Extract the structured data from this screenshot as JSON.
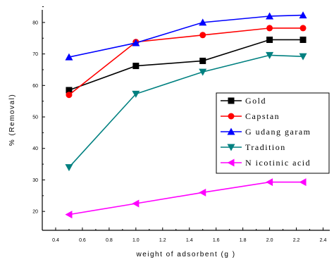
{
  "chart_data": {
    "type": "line",
    "title": "",
    "xlabel": "weight of adsorbent (g )",
    "ylabel": "% (Removal)",
    "xlim": [
      0.3,
      2.45
    ],
    "ylim": [
      14,
      84
    ],
    "xticks": [
      "0.4",
      "0.6",
      "0.8",
      "1.0",
      "1.2",
      "1.4",
      "1.6",
      "1.8",
      "2.0",
      "2.2",
      "2.4"
    ],
    "yticks": [
      "20",
      "30",
      "40",
      "50",
      "60",
      "70",
      "80"
    ],
    "grid": false,
    "legend_position": "right",
    "x": [
      0.5,
      1.0,
      1.5,
      2.0,
      2.25
    ],
    "series": [
      {
        "name": "Gold",
        "values": [
          58.5,
          66.2,
          67.8,
          74.5,
          74.5
        ],
        "color": "#000000",
        "marker": "square"
      },
      {
        "name": "Capstan",
        "values": [
          57,
          73.8,
          76,
          78.2,
          78.2
        ],
        "color": "#ff0000",
        "marker": "circle"
      },
      {
        "name": "G udang garam",
        "values": [
          69,
          73.5,
          80,
          82,
          82.3
        ],
        "color": "#0000ff",
        "marker": "triangle-up"
      },
      {
        "name": "Tradition",
        "values": [
          34,
          57.3,
          64.3,
          69.6,
          69.2
        ],
        "color": "#008080",
        "marker": "triangle-down"
      },
      {
        "name": "N icotinic acid",
        "values": [
          19,
          22.5,
          26,
          29.3,
          29.3
        ],
        "color": "#ff00ff",
        "marker": "triangle-left"
      }
    ]
  }
}
